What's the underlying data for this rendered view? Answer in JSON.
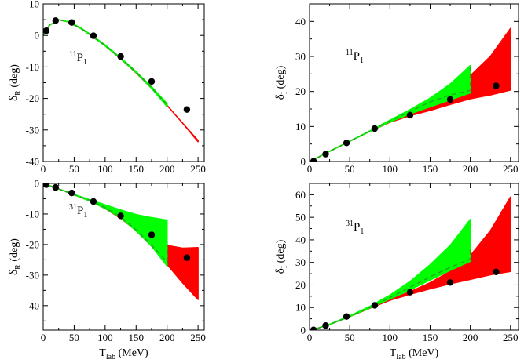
{
  "chart_data": [
    {
      "id": "top-left",
      "type": "line",
      "partial_wave": "11P1",
      "annotation": {
        "base": "P",
        "pre_sup": "11",
        "sub": "1"
      },
      "ylabel": {
        "main": "δ",
        "sub": "R",
        "rest": " (deg)"
      },
      "xlabel": null,
      "xlim": [
        0,
        260
      ],
      "ylim": [
        -40,
        10
      ],
      "xticks": [
        0,
        50,
        100,
        150,
        200,
        250
      ],
      "xtick_labels": [
        "0",
        "50",
        "100",
        "150",
        "200",
        "250"
      ],
      "yticks": [
        -40,
        -30,
        -20,
        -10,
        0,
        10
      ],
      "ytick_labels": [
        "-40",
        "-30",
        "-20",
        "-10",
        "0",
        "10"
      ],
      "data_points": {
        "x": [
          5,
          20,
          46,
          81,
          125,
          175,
          232
        ],
        "y": [
          1.5,
          4.7,
          4.1,
          -0.1,
          -6.7,
          -14.6,
          -23.5
        ]
      },
      "red_band": {
        "x": [
          0,
          10,
          25,
          40,
          60,
          80,
          100,
          125,
          150,
          175,
          200,
          225,
          250
        ],
        "lower": [
          0.1,
          3.2,
          5.0,
          4.3,
          2.3,
          -0.4,
          -3.3,
          -7.4,
          -11.9,
          -16.8,
          -22.2,
          -27.8,
          -33.7
        ],
        "upper": [
          0.1,
          3.2,
          5.0,
          4.3,
          2.3,
          -0.4,
          -3.3,
          -7.4,
          -11.9,
          -16.8,
          -22.2,
          -27.8,
          -33.3
        ]
      },
      "green_band": {
        "x": [
          0,
          10,
          25,
          40,
          60,
          80,
          100,
          125,
          150,
          175,
          200
        ],
        "lower": [
          0.1,
          3.2,
          5.0,
          4.3,
          2.3,
          -0.4,
          -3.3,
          -7.4,
          -11.8,
          -16.8,
          -22.6
        ],
        "upper": [
          0.1,
          3.2,
          5.0,
          4.4,
          2.5,
          -0.2,
          -3.0,
          -7.1,
          -11.5,
          -16.3,
          -21.6
        ]
      },
      "dashed_line": {
        "x": [
          0,
          10,
          25,
          40,
          60,
          80,
          100,
          125,
          150,
          175,
          200
        ],
        "y": [
          0.1,
          3.2,
          5.0,
          4.35,
          2.4,
          -0.3,
          -3.15,
          -7.25,
          -11.65,
          -16.55,
          -22.1
        ]
      }
    },
    {
      "id": "top-right",
      "type": "line",
      "partial_wave": "11P1",
      "annotation": {
        "base": "P",
        "pre_sup": "11",
        "sub": "1"
      },
      "ylabel": {
        "main": "δ",
        "sub": "I",
        "rest": " (deg)"
      },
      "xlabel": null,
      "xlim": [
        0,
        260
      ],
      "ylim": [
        0,
        45
      ],
      "xticks": [
        0,
        50,
        100,
        150,
        200,
        250
      ],
      "xtick_labels": [
        "0",
        "50",
        "100",
        "150",
        "200",
        "250"
      ],
      "yticks": [
        0,
        10,
        20,
        30,
        40
      ],
      "ytick_labels": [
        "0",
        "10",
        "20",
        "30",
        "40"
      ],
      "data_points": {
        "x": [
          5,
          20,
          46,
          81,
          125,
          175,
          232
        ],
        "y": [
          0.1,
          2.1,
          5.3,
          9.4,
          13.2,
          17.7,
          21.6
        ]
      },
      "red_band": {
        "x": [
          0,
          10,
          25,
          50,
          75,
          100,
          125,
          150,
          175,
          200,
          225,
          250
        ],
        "lower": [
          0,
          1.1,
          2.9,
          5.8,
          8.6,
          11.2,
          13.1,
          14.6,
          16.3,
          17.9,
          19.0,
          20.4
        ],
        "upper": [
          0,
          1.1,
          2.9,
          5.8,
          8.6,
          11.4,
          13.8,
          16.5,
          20.2,
          24.5,
          30.0,
          38.0
        ]
      },
      "green_band": {
        "x": [
          0,
          10,
          25,
          50,
          75,
          100,
          125,
          150,
          175,
          200
        ],
        "lower": [
          0,
          1.1,
          2.9,
          5.8,
          8.6,
          11.3,
          13.6,
          15.6,
          17.6,
          19.6
        ],
        "upper": [
          0,
          1.1,
          2.9,
          5.8,
          8.7,
          11.8,
          14.8,
          18.1,
          22.1,
          27.4
        ]
      },
      "dashed_line": {
        "x": [
          0,
          10,
          25,
          50,
          75,
          100,
          125,
          150,
          175,
          200,
          200
        ],
        "y": [
          0,
          1.1,
          2.9,
          5.8,
          8.7,
          11.6,
          14.3,
          17.0,
          19.0,
          20.3,
          27.0
        ]
      }
    },
    {
      "id": "bottom-left",
      "type": "line",
      "partial_wave": "31P1",
      "annotation": {
        "base": "P",
        "pre_sup": "31",
        "sub": "1"
      },
      "ylabel": {
        "main": "δ",
        "sub": "R",
        "rest": " (deg)"
      },
      "xlabel": {
        "main": "T",
        "sub": "lab",
        "rest": " (MeV)"
      },
      "xlim": [
        0,
        260
      ],
      "ylim": [
        -48,
        0
      ],
      "xticks": [
        0,
        50,
        100,
        150,
        200,
        250
      ],
      "xtick_labels": [
        "0",
        "50",
        "100",
        "150",
        "200",
        "250"
      ],
      "yticks": [
        -40,
        -30,
        -20,
        -10,
        0
      ],
      "ytick_labels": [
        "-40",
        "-30",
        "-20",
        "-10",
        "0"
      ],
      "data_points": {
        "x": [
          5,
          20,
          46,
          81,
          125,
          175,
          232
        ],
        "y": [
          -0.4,
          -1.3,
          -3.1,
          -5.9,
          -10.6,
          -16.8,
          -24.3
        ]
      },
      "red_band": {
        "x": [
          0,
          10,
          25,
          50,
          75,
          100,
          125,
          150,
          175,
          200,
          225,
          250
        ],
        "lower": [
          0,
          -0.7,
          -1.8,
          -3.7,
          -5.7,
          -8.2,
          -11.4,
          -15.4,
          -20.5,
          -26.5,
          -32.5,
          -38.0
        ],
        "upper": [
          0,
          -0.7,
          -1.8,
          -3.7,
          -5.7,
          -7.9,
          -10.3,
          -13.7,
          -17.8,
          -20.3,
          -21.2,
          -21.0
        ]
      },
      "green_band": {
        "x": [
          0,
          10,
          25,
          50,
          75,
          100,
          125,
          150,
          175,
          200
        ],
        "lower": [
          0,
          -0.7,
          -1.8,
          -3.7,
          -5.7,
          -8.2,
          -11.2,
          -15.5,
          -20.5,
          -27.0
        ],
        "upper": [
          0,
          -0.7,
          -1.8,
          -3.6,
          -5.3,
          -7.0,
          -8.7,
          -10.2,
          -11.2,
          -12.0
        ]
      },
      "dashed_line": {
        "x": [
          0,
          10,
          25,
          50,
          75,
          100,
          125,
          150,
          175,
          200,
          200
        ],
        "y": [
          0,
          -0.7,
          -1.8,
          -3.7,
          -5.5,
          -7.9,
          -10.9,
          -15.2,
          -20.2,
          -25.7,
          -18.0
        ]
      }
    },
    {
      "id": "bottom-right",
      "type": "line",
      "partial_wave": "31P1",
      "annotation": {
        "base": "P",
        "pre_sup": "31",
        "sub": "1"
      },
      "ylabel": {
        "main": "δ",
        "sub": "I",
        "rest": " (deg)"
      },
      "xlabel": {
        "main": "T",
        "sub": "lab",
        "rest": " (MeV)"
      },
      "xlim": [
        0,
        260
      ],
      "ylim": [
        0,
        65
      ],
      "xticks": [
        0,
        50,
        100,
        150,
        200,
        250
      ],
      "xtick_labels": [
        "0",
        "50",
        "100",
        "150",
        "200",
        "250"
      ],
      "yticks": [
        0,
        10,
        20,
        30,
        40,
        50,
        60
      ],
      "ytick_labels": [
        "0",
        "10",
        "20",
        "30",
        "40",
        "50",
        "60"
      ],
      "data_points": {
        "x": [
          5,
          20,
          46,
          81,
          125,
          175,
          232
        ],
        "y": [
          0.1,
          2.0,
          6.0,
          11.0,
          16.8,
          21.1,
          25.8
        ]
      },
      "red_band": {
        "x": [
          0,
          10,
          25,
          50,
          75,
          100,
          125,
          150,
          175,
          200,
          225,
          250
        ],
        "lower": [
          0,
          0.8,
          2.5,
          6.0,
          9.7,
          13.2,
          15.9,
          18.3,
          20.5,
          22.5,
          24.5,
          26.0
        ],
        "upper": [
          0,
          0.8,
          2.5,
          6.0,
          9.8,
          13.6,
          17.0,
          21.0,
          26.0,
          33.0,
          44.0,
          59.0
        ]
      },
      "green_band": {
        "x": [
          0,
          10,
          25,
          50,
          75,
          100,
          125,
          150,
          175,
          200
        ],
        "lower": [
          0,
          0.8,
          2.5,
          6.0,
          9.8,
          13.8,
          17.8,
          22.2,
          26.5,
          30.5
        ],
        "upper": [
          0,
          0.8,
          2.6,
          6.3,
          10.5,
          15.5,
          21.5,
          29.0,
          37.5,
          49.0
        ]
      },
      "dashed_line": {
        "x": [
          0,
          10,
          25,
          50,
          75,
          100,
          125,
          150,
          175,
          200,
          200
        ],
        "y": [
          0,
          0.8,
          2.5,
          6.1,
          10.0,
          14.4,
          19.0,
          23.6,
          27.8,
          31.5,
          37.0
        ]
      }
    }
  ],
  "colors": {
    "red": "#ff0000",
    "green": "#00ff00",
    "dash": "#22aa22",
    "points": "#000000",
    "frame": "#000000"
  }
}
